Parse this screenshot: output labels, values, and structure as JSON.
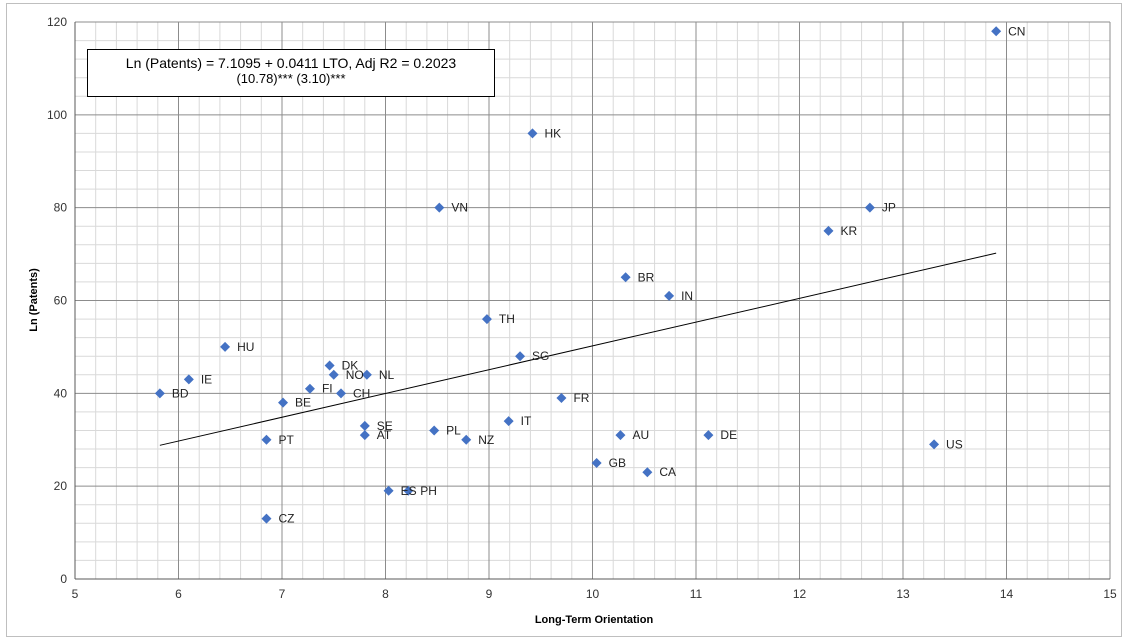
{
  "chart_data": {
    "type": "scatter",
    "xlabel": "Long-Term Orientation",
    "ylabel": "Ln (Patents)",
    "xlim": [
      5,
      15
    ],
    "ylim": [
      0,
      120
    ],
    "x_ticks": [
      5,
      6,
      7,
      8,
      9,
      10,
      11,
      12,
      13,
      14,
      15
    ],
    "y_ticks": [
      0,
      20,
      40,
      60,
      80,
      100,
      120
    ],
    "grid": true,
    "marker": "diamond",
    "marker_color": "#4472c4",
    "annotation": {
      "line1": "Ln (Patents) = 7.1095 + 0.0411 LTO,  Adj R2 = 0.2023",
      "line2": "(10.78)***  (3.10)***"
    },
    "trendline": {
      "x": [
        5.82,
        13.9
      ],
      "y": [
        28.8,
        70.2
      ]
    },
    "points": [
      {
        "label": "CN",
        "x": 13.9,
        "y": 118
      },
      {
        "label": "HK",
        "x": 9.42,
        "y": 96
      },
      {
        "label": "VN",
        "x": 8.52,
        "y": 80
      },
      {
        "label": "JP",
        "x": 12.68,
        "y": 80
      },
      {
        "label": "KR",
        "x": 12.28,
        "y": 75
      },
      {
        "label": "BR",
        "x": 10.32,
        "y": 65
      },
      {
        "label": "IN",
        "x": 10.74,
        "y": 61
      },
      {
        "label": "TH",
        "x": 8.98,
        "y": 56
      },
      {
        "label": "HU",
        "x": 6.45,
        "y": 50
      },
      {
        "label": "SG",
        "x": 9.3,
        "y": 48
      },
      {
        "label": "DK",
        "x": 7.46,
        "y": 46
      },
      {
        "label": "NO",
        "x": 7.5,
        "y": 44
      },
      {
        "label": "NL",
        "x": 7.82,
        "y": 44
      },
      {
        "label": "IE",
        "x": 6.1,
        "y": 43
      },
      {
        "label": "FI",
        "x": 7.27,
        "y": 41
      },
      {
        "label": "CH",
        "x": 7.57,
        "y": 40
      },
      {
        "label": "BD",
        "x": 5.82,
        "y": 40
      },
      {
        "label": "FR",
        "x": 9.7,
        "y": 39
      },
      {
        "label": "BE",
        "x": 7.01,
        "y": 38
      },
      {
        "label": "IT",
        "x": 9.19,
        "y": 34
      },
      {
        "label": "SE",
        "x": 7.8,
        "y": 33
      },
      {
        "label": "PL",
        "x": 8.47,
        "y": 32
      },
      {
        "label": "AT",
        "x": 7.8,
        "y": 31
      },
      {
        "label": "AU",
        "x": 10.27,
        "y": 31
      },
      {
        "label": "DE",
        "x": 11.12,
        "y": 31
      },
      {
        "label": "PT",
        "x": 6.85,
        "y": 30
      },
      {
        "label": "NZ",
        "x": 8.78,
        "y": 30
      },
      {
        "label": "US",
        "x": 13.3,
        "y": 29
      },
      {
        "label": "GB",
        "x": 10.04,
        "y": 25
      },
      {
        "label": "CA",
        "x": 10.53,
        "y": 23
      },
      {
        "label": "ES",
        "x": 8.03,
        "y": 19
      },
      {
        "label": "PH",
        "x": 8.22,
        "y": 19
      },
      {
        "label": "CZ",
        "x": 6.85,
        "y": 13
      }
    ]
  }
}
